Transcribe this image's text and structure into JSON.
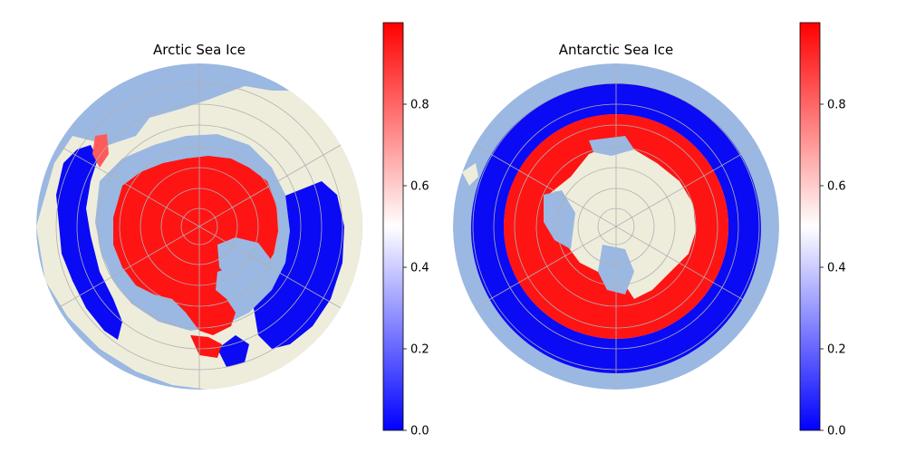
{
  "figure": {
    "panels": [
      {
        "title": "Arctic Sea Ice"
      },
      {
        "title": "Antarctic Sea Ice"
      }
    ],
    "colorbar": {
      "ticks": [
        "0.0",
        "0.2",
        "0.4",
        "0.6",
        "0.8"
      ],
      "range": [
        0.0,
        1.0
      ],
      "colors": {
        "low": "#0000ff",
        "mid": "#ffffff",
        "high": "#ff0000"
      }
    },
    "colors": {
      "ocean": "#9bb8e2",
      "land": "#eeeddc",
      "gridline": "#b0b0b0",
      "ice_high": "#ff1414",
      "ice_low": "#0a0af5"
    }
  }
}
